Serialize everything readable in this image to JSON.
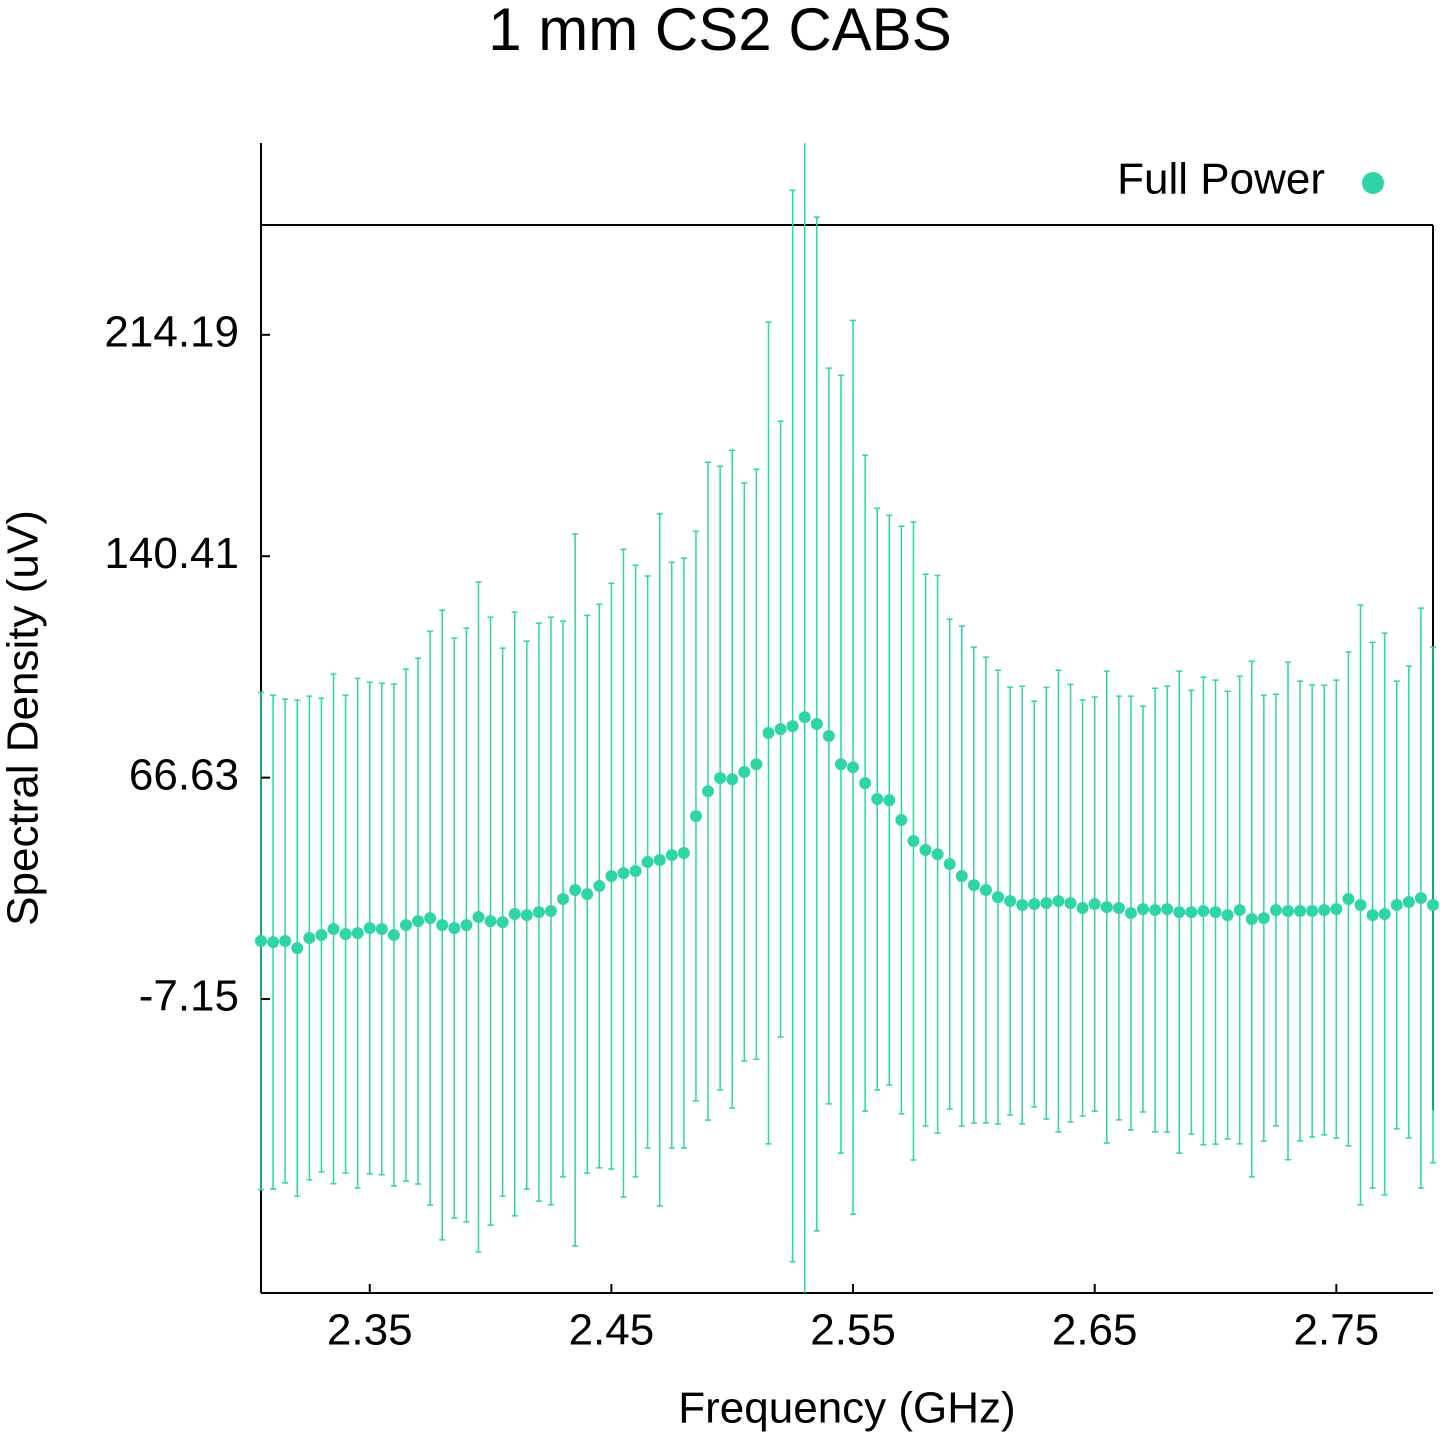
{
  "chart_data": {
    "type": "scatter",
    "title": "1 mm CS2 CABS",
    "x_label": "Frequency (GHz)",
    "y_label": "Spectral Density (uV)",
    "x": [
      2.305,
      2.31,
      2.315,
      2.32,
      2.325,
      2.33,
      2.335,
      2.34,
      2.345,
      2.35,
      2.355,
      2.36,
      2.365,
      2.37,
      2.375,
      2.38,
      2.385,
      2.39,
      2.395,
      2.4,
      2.405,
      2.41,
      2.415,
      2.42,
      2.425,
      2.43,
      2.435,
      2.44,
      2.445,
      2.45,
      2.455,
      2.46,
      2.465,
      2.47,
      2.475,
      2.48,
      2.485,
      2.49,
      2.495,
      2.5,
      2.505,
      2.51,
      2.515,
      2.52,
      2.525,
      2.53,
      2.535,
      2.54,
      2.545,
      2.55,
      2.555,
      2.56,
      2.565,
      2.57,
      2.575,
      2.58,
      2.585,
      2.59,
      2.595,
      2.6,
      2.605,
      2.61,
      2.615,
      2.62,
      2.625,
      2.63,
      2.635,
      2.64,
      2.645,
      2.65,
      2.655,
      2.66,
      2.665,
      2.67,
      2.675,
      2.68,
      2.685,
      2.69,
      2.695,
      2.7,
      2.705,
      2.71,
      2.715,
      2.72,
      2.725,
      2.73,
      2.735,
      2.74,
      2.745,
      2.75,
      2.755,
      2.76,
      2.765,
      2.77,
      2.775,
      2.78,
      2.785,
      2.79
    ],
    "series": [
      {
        "name": "Full Power",
        "color": "#2fd4a7",
        "values": [
          12.2,
          11.8,
          12.2,
          9.8,
          13.2,
          14.2,
          16.2,
          14.5,
          14.8,
          16.5,
          16.2,
          14.2,
          17.5,
          18.8,
          19.8,
          17.5,
          16.5,
          17.5,
          20.2,
          18.8,
          18.5,
          21.2,
          20.8,
          21.8,
          22.2,
          26.2,
          29.2,
          27.8,
          30.5,
          33.8,
          34.8,
          35.5,
          38.5,
          39.2,
          40.8,
          41.5,
          53.8,
          62.1,
          66.5,
          66.1,
          68.5,
          71.1,
          81.5,
          82.8,
          83.8,
          86.8,
          84.5,
          80.5,
          71.1,
          70.1,
          64.8,
          59.5,
          59.1,
          52.5,
          45.5,
          42.5,
          41.1,
          37.8,
          33.8,
          30.8,
          29.2,
          26.8,
          25.5,
          24.2,
          24.5,
          24.8,
          25.5,
          24.8,
          23.2,
          24.5,
          23.5,
          23.2,
          21.5,
          22.8,
          22.5,
          22.8,
          21.8,
          21.8,
          22.2,
          21.8,
          20.8,
          22.5,
          19.5,
          19.8,
          22.5,
          22.2,
          22.2,
          22.2,
          22.5,
          22.8,
          26.2,
          24.2,
          20.8,
          21.2,
          24.2,
          25.2,
          26.5,
          24.2
        ],
        "errors": [
          82.9,
          82.3,
          80.6,
          82.6,
          80.6,
          78.9,
          84.9,
          79.6,
          84.9,
          81.9,
          81.9,
          83.6,
          85.3,
          87.6,
          95.6,
          104.9,
          96.6,
          98.9,
          111.6,
          101.3,
          91.3,
          100.6,
          91.3,
          96.3,
          97.9,
          92.6,
          118.6,
          92.9,
          93.9,
          97.6,
          107.9,
          101.9,
          95.3,
          115.3,
          97.6,
          98.3,
          94.9,
          109.6,
          103.9,
          109.6,
          96.3,
          98.3,
          136.9,
          102.6,
          178.5,
          200,
          168.9,
          122.6,
          129.6,
          148.9,
          109.3,
          96.9,
          94.9,
          97.9,
          106.3,
          91.9,
          92.9,
          81.6,
          83.3,
          79.3,
          77.6,
          75.6,
          71.3,
          72.9,
          67.6,
          71.9,
          76.9,
          72.9,
          69.3,
          69.0,
          78.6,
          70.6,
          72.3,
          67.6,
          73.9,
          74.3,
          80.3,
          73.9,
          77.9,
          77.3,
          74.6,
          77.9,
          85.9,
          74.3,
          71.9,
          82.9,
          76.6,
          75.3,
          74.9,
          76.3,
          82.3,
          99.9,
          90.9,
          93.6,
          74.6,
          78.6,
          96.6,
          85.9
        ]
      }
    ],
    "xlim": [
      2.305,
      2.79
    ],
    "xticks": [
      2.35,
      2.45,
      2.55,
      2.65,
      2.75
    ],
    "ylim": [
      -105.1,
      278.1
    ],
    "yticks": [
      -7.15,
      66.63,
      140.41,
      214.19
    ],
    "legend": "top-right"
  }
}
